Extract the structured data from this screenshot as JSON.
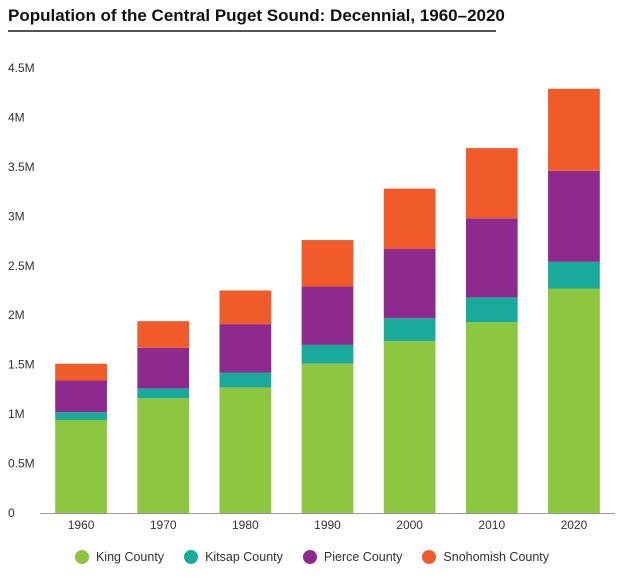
{
  "colors": {
    "King County": "#8dc63f",
    "Kitsap County": "#1aaa9b",
    "Pierce County": "#8e2a8e",
    "Snohomish County": "#f15a29"
  },
  "chart_data": {
    "type": "bar",
    "stacked": true,
    "title": "Population of the Central Puget Sound: Decennial, 1960–2020",
    "xlabel": "",
    "ylabel": "",
    "categories": [
      "1960",
      "1970",
      "1980",
      "1990",
      "2000",
      "2010",
      "2020"
    ],
    "ylim": [
      0,
      4.5
    ],
    "yticks": [
      {
        "value": 0,
        "label": "0"
      },
      {
        "value": 0.5,
        "label": "0.5M"
      },
      {
        "value": 1,
        "label": "1M"
      },
      {
        "value": 1.5,
        "label": "1.5M"
      },
      {
        "value": 2,
        "label": "2M"
      },
      {
        "value": 2.5,
        "label": "2.5M"
      },
      {
        "value": 3,
        "label": "3M"
      },
      {
        "value": 3.5,
        "label": "3.5M"
      },
      {
        "value": 4,
        "label": "4M"
      },
      {
        "value": 4.5,
        "label": "4.5M"
      }
    ],
    "grid": false,
    "legend_position": "bottom",
    "series": [
      {
        "name": "King County",
        "values": [
          0.94,
          1.16,
          1.27,
          1.51,
          1.74,
          1.93,
          2.27
        ]
      },
      {
        "name": "Kitsap County",
        "values": [
          0.08,
          0.1,
          0.15,
          0.19,
          0.23,
          0.25,
          0.27
        ]
      },
      {
        "name": "Pierce County",
        "values": [
          0.32,
          0.41,
          0.49,
          0.59,
          0.7,
          0.8,
          0.92
        ]
      },
      {
        "name": "Snohomish County",
        "values": [
          0.17,
          0.27,
          0.34,
          0.47,
          0.61,
          0.71,
          0.83
        ]
      }
    ]
  }
}
